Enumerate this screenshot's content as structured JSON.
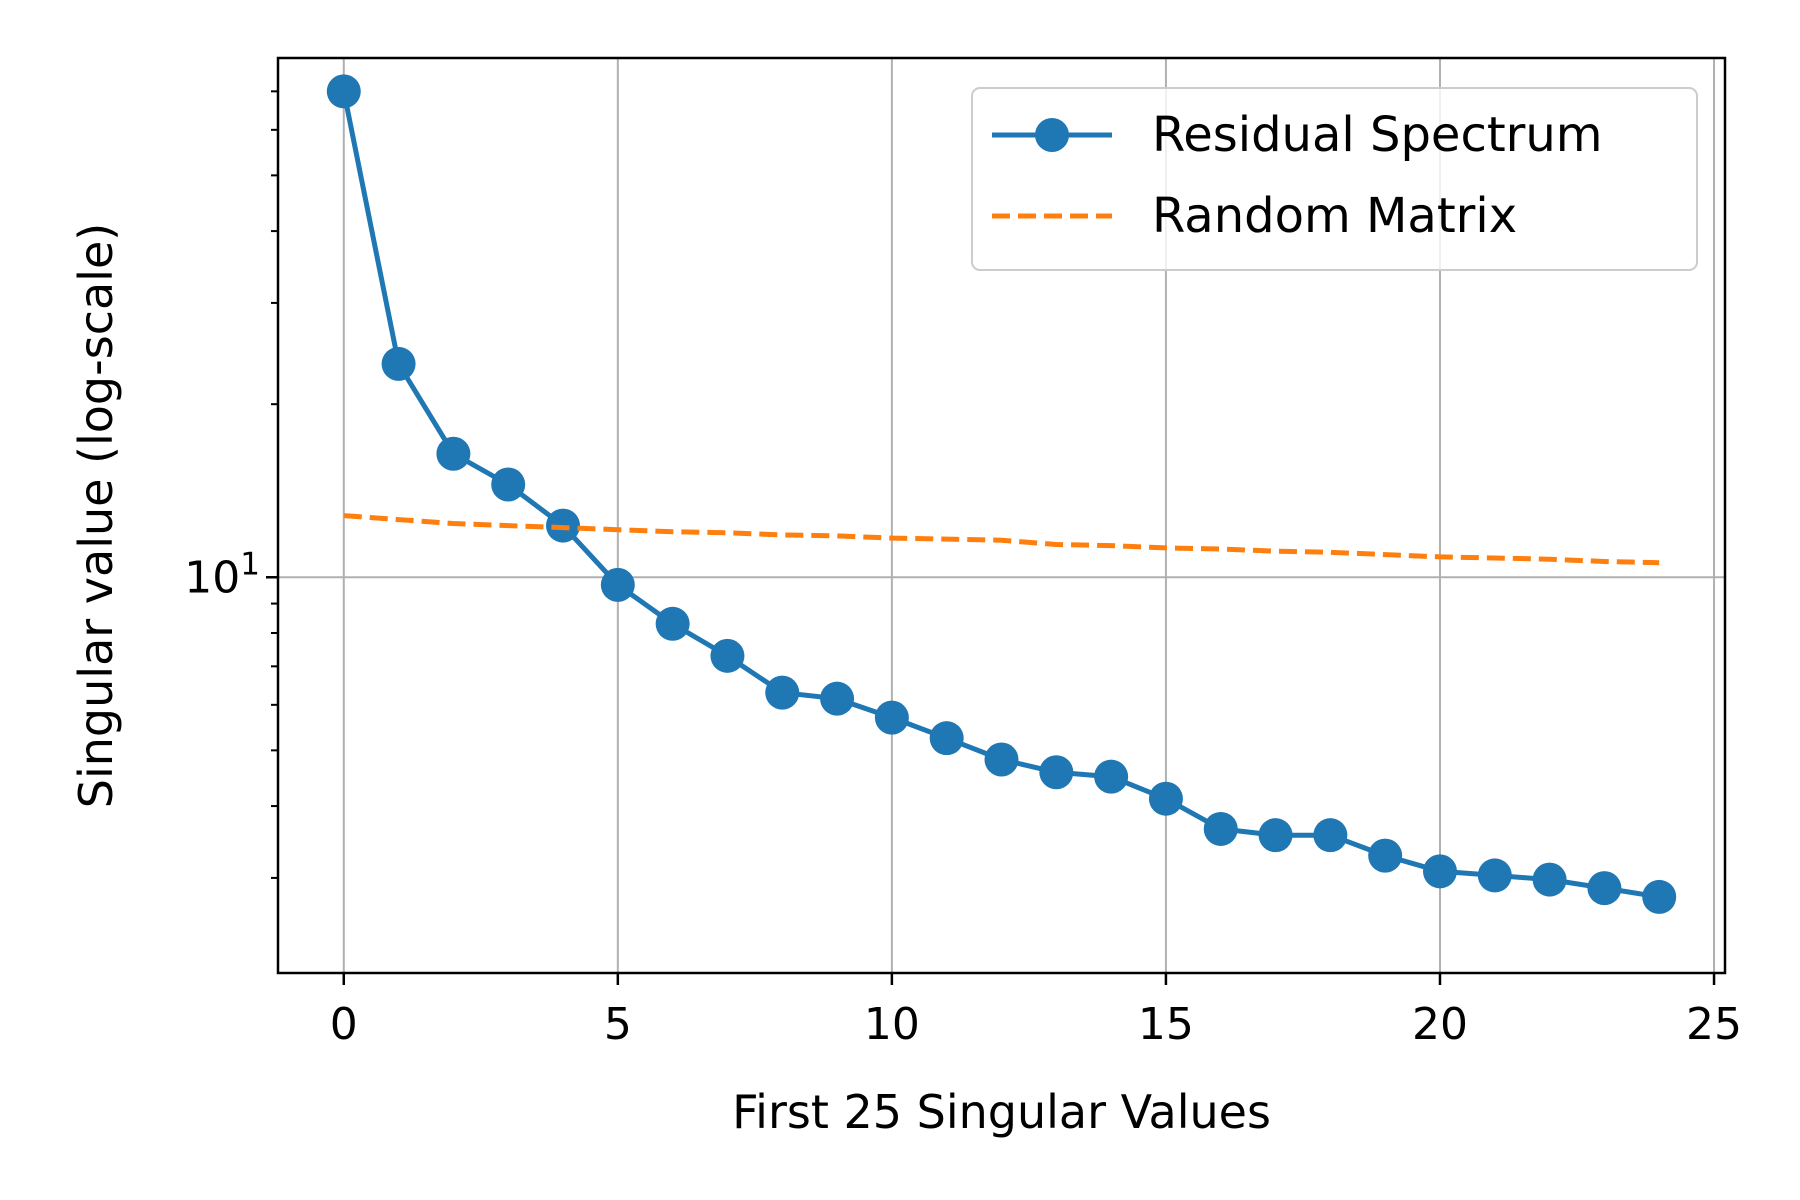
{
  "chart_data": {
    "type": "line",
    "xlabel": "First 25 Singular Values",
    "ylabel": "Singular value (log-scale)",
    "x_scale": "linear",
    "y_scale": "log",
    "xlim": [
      -1.2,
      25.2
    ],
    "ylim": [
      2.05,
      80
    ],
    "grid": true,
    "legend_position": "top-right",
    "x_ticks": [
      0,
      5,
      10,
      15,
      20,
      25
    ],
    "x_tick_labels": [
      "0",
      "5",
      "10",
      "15",
      "20",
      "25"
    ],
    "y_major_ticks": [
      10
    ],
    "y_major_tick_labels": [
      {
        "base": "10",
        "exp": "1"
      }
    ],
    "y_minor_ticks": [
      3,
      4,
      5,
      6,
      7,
      8,
      9,
      20,
      30,
      40,
      50,
      60,
      70
    ],
    "x": [
      0,
      1,
      2,
      3,
      4,
      5,
      6,
      7,
      8,
      9,
      10,
      11,
      12,
      13,
      14,
      15,
      16,
      17,
      18,
      19,
      20,
      21,
      22,
      23,
      24
    ],
    "series": [
      {
        "name": "Residual Spectrum",
        "color": "#1f77b4",
        "style": "solid",
        "marker": "circle",
        "values": [
          70.0,
          23.5,
          16.4,
          14.5,
          12.3,
          9.7,
          8.3,
          7.3,
          6.3,
          6.15,
          5.7,
          5.25,
          4.82,
          4.58,
          4.5,
          4.12,
          3.65,
          3.56,
          3.56,
          3.28,
          3.08,
          3.03,
          2.98,
          2.88,
          2.78
        ]
      },
      {
        "name": "Random Matrix",
        "color": "#ff7f0e",
        "style": "dashed",
        "marker": "none",
        "values": [
          12.8,
          12.6,
          12.4,
          12.3,
          12.2,
          12.1,
          12.0,
          11.95,
          11.85,
          11.8,
          11.7,
          11.65,
          11.6,
          11.4,
          11.35,
          11.25,
          11.2,
          11.1,
          11.05,
          10.95,
          10.85,
          10.8,
          10.75,
          10.65,
          10.6
        ]
      }
    ]
  }
}
